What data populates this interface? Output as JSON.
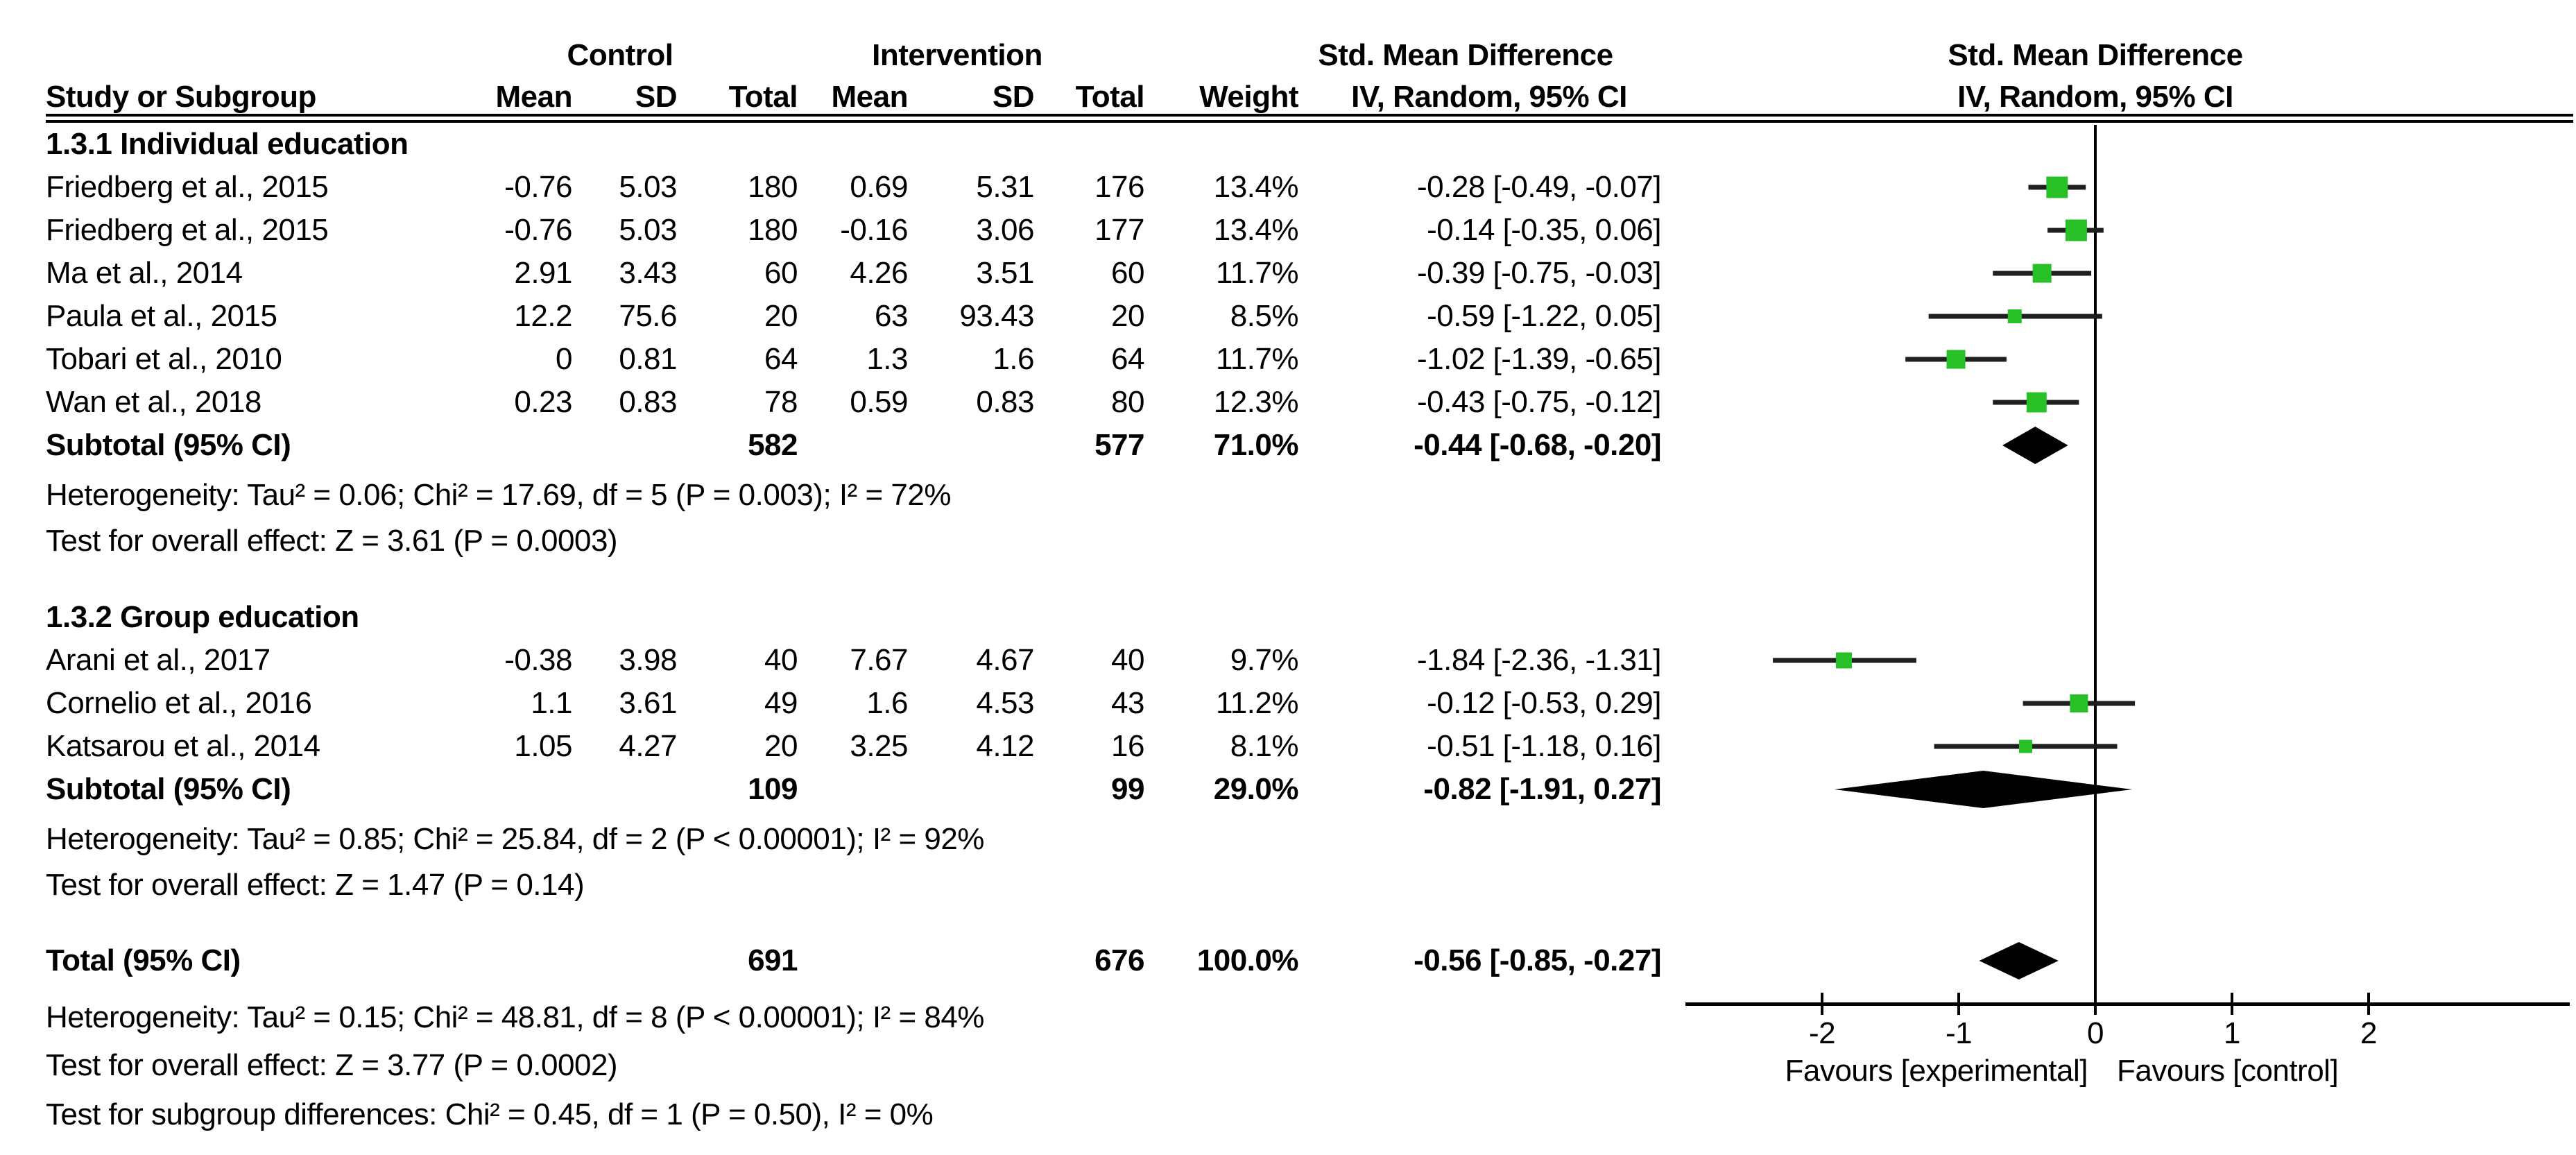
{
  "header": {
    "control_group": "Control",
    "intervention_group": "Intervention",
    "smd_left": "Std. Mean Difference",
    "method_left": "IV, Random, 95% CI",
    "smd_right": "Std. Mean Difference",
    "method_right": "IV, Random, 95% CI",
    "study": "Study or Subgroup",
    "mean": "Mean",
    "sd": "SD",
    "total": "Total",
    "weight": "Weight"
  },
  "chart_data": {
    "type": "forest",
    "effect_measure": "Std. Mean Difference",
    "model": "IV, Random, 95% CI",
    "axis": {
      "ticks": [
        -2,
        -1,
        0,
        1,
        2
      ],
      "tick_labels": [
        "-2",
        "-1",
        "0",
        "1",
        "2"
      ],
      "favours_left": "Favours [experimental]",
      "favours_right": "Favours [control]"
    },
    "sections": [
      {
        "heading": "1.3.1 Individual education",
        "studies": [
          {
            "study": "Friedberg et al., 2015",
            "c_mean": "-0.76",
            "c_sd": "5.03",
            "c_total": "180",
            "i_mean": "0.69",
            "i_sd": "5.31",
            "i_total": "176",
            "weight": "13.4%",
            "weight_val": 13.4,
            "ci": "-0.28 [-0.49, -0.07]",
            "est": -0.28,
            "lo": -0.49,
            "hi": -0.07
          },
          {
            "study": "Friedberg et al., 2015",
            "c_mean": "-0.76",
            "c_sd": "5.03",
            "c_total": "180",
            "i_mean": "-0.16",
            "i_sd": "3.06",
            "i_total": "177",
            "weight": "13.4%",
            "weight_val": 13.4,
            "ci": "-0.14 [-0.35, 0.06]",
            "est": -0.14,
            "lo": -0.35,
            "hi": 0.06
          },
          {
            "study": "Ma et al., 2014",
            "c_mean": "2.91",
            "c_sd": "3.43",
            "c_total": "60",
            "i_mean": "4.26",
            "i_sd": "3.51",
            "i_total": "60",
            "weight": "11.7%",
            "weight_val": 11.7,
            "ci": "-0.39 [-0.75, -0.03]",
            "est": -0.39,
            "lo": -0.75,
            "hi": -0.03
          },
          {
            "study": "Paula et al., 2015",
            "c_mean": "12.2",
            "c_sd": "75.6",
            "c_total": "20",
            "i_mean": "63",
            "i_sd": "93.43",
            "i_total": "20",
            "weight": "8.5%",
            "weight_val": 8.5,
            "ci": "-0.59 [-1.22, 0.05]",
            "est": -0.59,
            "lo": -1.22,
            "hi": 0.05
          },
          {
            "study": "Tobari et al., 2010",
            "c_mean": "0",
            "c_sd": "0.81",
            "c_total": "64",
            "i_mean": "1.3",
            "i_sd": "1.6",
            "i_total": "64",
            "weight": "11.7%",
            "weight_val": 11.7,
            "ci": "-1.02 [-1.39, -0.65]",
            "est": -1.02,
            "lo": -1.39,
            "hi": -0.65
          },
          {
            "study": "Wan et al., 2018",
            "c_mean": "0.23",
            "c_sd": "0.83",
            "c_total": "78",
            "i_mean": "0.59",
            "i_sd": "0.83",
            "i_total": "80",
            "weight": "12.3%",
            "weight_val": 12.3,
            "ci": "-0.43 [-0.75, -0.12]",
            "est": -0.43,
            "lo": -0.75,
            "hi": -0.12
          }
        ],
        "subtotal": {
          "label": "Subtotal (95% CI)",
          "c_total": "582",
          "i_total": "577",
          "weight": "71.0%",
          "ci": "-0.44 [-0.68, -0.20]",
          "est": -0.44,
          "lo": -0.68,
          "hi": -0.2
        },
        "heterogeneity": "Heterogeneity: Tau² = 0.06; Chi² = 17.69, df = 5 (P = 0.003); I² = 72%",
        "overall_effect": "Test for overall effect: Z = 3.61 (P = 0.0003)"
      },
      {
        "heading": "1.3.2 Group education",
        "studies": [
          {
            "study": "Arani et al., 2017",
            "c_mean": "-0.38",
            "c_sd": "3.98",
            "c_total": "40",
            "i_mean": "7.67",
            "i_sd": "4.67",
            "i_total": "40",
            "weight": "9.7%",
            "weight_val": 9.7,
            "ci": "-1.84 [-2.36, -1.31]",
            "est": -1.84,
            "lo": -2.36,
            "hi": -1.31
          },
          {
            "study": "Cornelio et al., 2016",
            "c_mean": "1.1",
            "c_sd": "3.61",
            "c_total": "49",
            "i_mean": "1.6",
            "i_sd": "4.53",
            "i_total": "43",
            "weight": "11.2%",
            "weight_val": 11.2,
            "ci": "-0.12 [-0.53, 0.29]",
            "est": -0.12,
            "lo": -0.53,
            "hi": 0.29
          },
          {
            "study": "Katsarou et al., 2014",
            "c_mean": "1.05",
            "c_sd": "4.27",
            "c_total": "20",
            "i_mean": "3.25",
            "i_sd": "4.12",
            "i_total": "16",
            "weight": "8.1%",
            "weight_val": 8.1,
            "ci": "-0.51 [-1.18, 0.16]",
            "est": -0.51,
            "lo": -1.18,
            "hi": 0.16
          }
        ],
        "subtotal": {
          "label": "Subtotal (95% CI)",
          "c_total": "109",
          "i_total": "99",
          "weight": "29.0%",
          "ci": "-0.82 [-1.91, 0.27]",
          "est": -0.82,
          "lo": -1.91,
          "hi": 0.27
        },
        "heterogeneity": "Heterogeneity: Tau² = 0.85; Chi² = 25.84, df = 2 (P < 0.00001); I² = 92%",
        "overall_effect": "Test for overall effect: Z = 1.47 (P = 0.14)"
      }
    ],
    "total": {
      "label": "Total (95% CI)",
      "c_total": "691",
      "i_total": "676",
      "weight": "100.0%",
      "ci": "-0.56 [-0.85, -0.27]",
      "est": -0.56,
      "lo": -0.85,
      "hi": -0.27
    },
    "footer": {
      "heterogeneity": "Heterogeneity: Tau² = 0.15; Chi² = 48.81, df = 8 (P < 0.00001); I² = 84%",
      "overall_effect": "Test for overall effect: Z = 3.77 (P = 0.0002)",
      "subgroup_differences": "Test for subgroup differences: Chi² = 0.45, df = 1 (P = 0.50), I² = 0%"
    },
    "colors": {
      "marker": "#27c127",
      "ci_line": "#1f1f1f",
      "diamond": "#000000",
      "axis": "#000000"
    }
  }
}
